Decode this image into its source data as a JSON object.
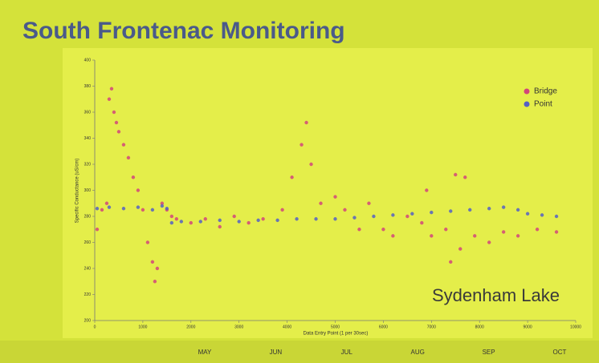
{
  "chart_data": {
    "type": "scatter",
    "title": "South Frontenac Monitoring",
    "annotation": "Sydenham Lake",
    "xlabel": "Data Entry Point (1 per 30sec)",
    "ylabel": "Specific Conductance (uS/cm)",
    "xlim": [
      0,
      10000
    ],
    "xticks": [
      0,
      1000,
      2000,
      3000,
      4000,
      5000,
      6000,
      7000,
      8000,
      9000,
      10000
    ],
    "ylim": [
      200,
      400
    ],
    "yticks": [
      200,
      220,
      240,
      260,
      280,
      300,
      320,
      340,
      360,
      380,
      400
    ],
    "months": [
      "MAY",
      "JUN",
      "JUL",
      "AUG",
      "SEP",
      "OCT"
    ],
    "legend": "upper right",
    "series": [
      {
        "name": "Bridge",
        "color": "#d2457a",
        "x": [
          50,
          150,
          250,
          300,
          350,
          400,
          450,
          500,
          600,
          700,
          800,
          900,
          1000,
          1100,
          1200,
          1250,
          1300,
          1400,
          1500,
          1600,
          1700,
          2000,
          2300,
          2600,
          2900,
          3200,
          3500,
          3900,
          4100,
          4300,
          4400,
          4500,
          4700,
          5000,
          5200,
          5500,
          5700,
          6000,
          6200,
          6500,
          6800,
          6900,
          7000,
          7300,
          7400,
          7500,
          7600,
          7700,
          7900,
          8200,
          8500,
          8800,
          9200,
          9600
        ],
        "values": [
          270,
          285,
          290,
          370,
          378,
          360,
          352,
          345,
          335,
          325,
          310,
          300,
          285,
          260,
          245,
          230,
          240,
          290,
          285,
          280,
          278,
          275,
          278,
          272,
          280,
          275,
          278,
          285,
          310,
          335,
          352,
          320,
          290,
          295,
          285,
          270,
          290,
          270,
          265,
          280,
          275,
          300,
          265,
          270,
          245,
          312,
          255,
          310,
          265,
          260,
          268,
          265,
          270,
          268
        ]
      },
      {
        "name": "Point",
        "color": "#5560c4",
        "x": [
          50,
          300,
          600,
          900,
          1200,
          1400,
          1500,
          1600,
          1800,
          2200,
          2600,
          3000,
          3400,
          3800,
          4200,
          4600,
          5000,
          5400,
          5800,
          6200,
          6600,
          7000,
          7400,
          7800,
          8200,
          8500,
          8800,
          9000,
          9300,
          9600
        ],
        "values": [
          286,
          287,
          286,
          287,
          285,
          288,
          286,
          275,
          276,
          276,
          277,
          276,
          277,
          277,
          278,
          278,
          278,
          279,
          280,
          281,
          282,
          283,
          284,
          285,
          286,
          287,
          285,
          282,
          281,
          280
        ]
      }
    ]
  }
}
